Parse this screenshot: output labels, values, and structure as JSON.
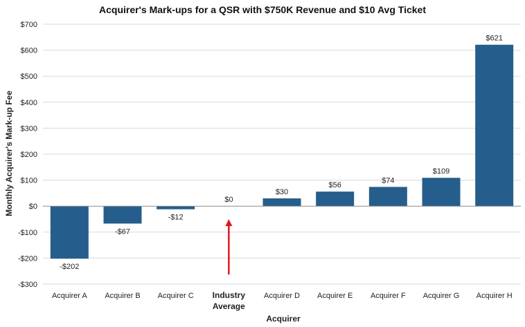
{
  "chart_data": {
    "type": "bar",
    "title": "Acquirer's Mark-ups for a QSR with $750K Revenue and $10 Avg Ticket",
    "xlabel": "Acquirer",
    "ylabel": "Monthly Acquirer's Mark-up Fee",
    "categories": [
      "Acquirer A",
      "Acquirer B",
      "Acquirer C",
      "Industry Average",
      "Acquirer D",
      "Acquirer E",
      "Acquirer F",
      "Acquirer G",
      "Acquirer H"
    ],
    "category_lines": [
      [
        "Acquirer A"
      ],
      [
        "Acquirer B"
      ],
      [
        "Acquirer C"
      ],
      [
        "Industry",
        "Average"
      ],
      [
        "Acquirer D"
      ],
      [
        "Acquirer E"
      ],
      [
        "Acquirer F"
      ],
      [
        "Acquirer G"
      ],
      [
        "Acquirer H"
      ]
    ],
    "values": [
      -202,
      -67,
      -12,
      0,
      30,
      56,
      74,
      109,
      621
    ],
    "data_labels": [
      "-$202",
      "-$67",
      "-$12",
      "$0",
      "$30",
      "$56",
      "$74",
      "$109",
      "$621"
    ],
    "ylim": [
      -300,
      700
    ],
    "yticks": [
      -300,
      -200,
      -100,
      0,
      100,
      200,
      300,
      400,
      500,
      600,
      700
    ],
    "ytick_labels": [
      "-$300",
      "-$200",
      "-$100",
      "$0",
      "$100",
      "$200",
      "$300",
      "$400",
      "$500",
      "$600",
      "$700"
    ],
    "grid": true,
    "legend": "none",
    "highlight_category": "Industry Average",
    "annotation": "red upward arrow pointing to Industry Average",
    "colors": {
      "bar": "#255E8C",
      "grid": "#D9D9D9",
      "axis": "#8C8C8C",
      "highlight": "#E3161D"
    }
  }
}
